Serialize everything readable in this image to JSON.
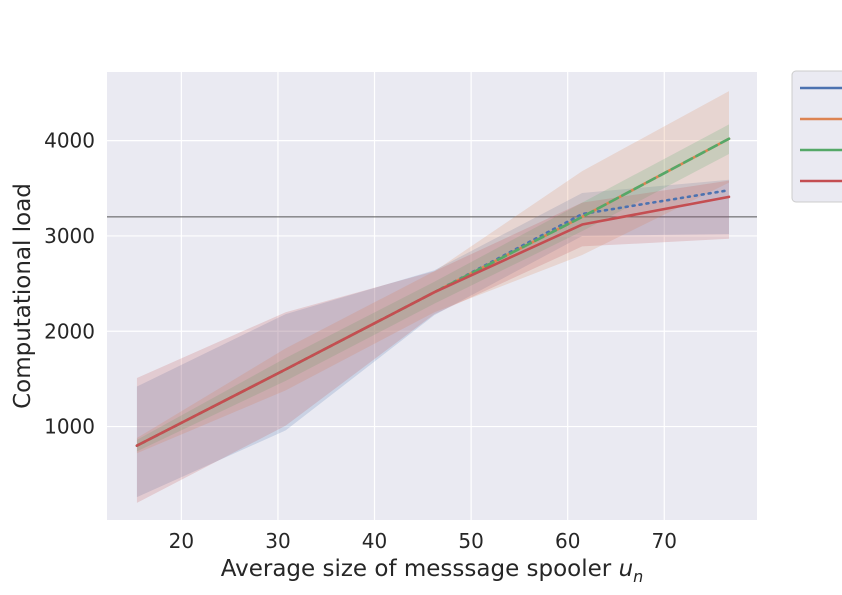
{
  "chart_data": {
    "type": "line",
    "title": "",
    "xlabel": "Average size of messsage spooler ",
    "xlabel_var": "u",
    "xlabel_sub": "n",
    "ylabel": "Computational load",
    "xlim": [
      12.3,
      79.6
    ],
    "ylim": [
      20,
      4720
    ],
    "xticks": [
      20,
      30,
      40,
      50,
      60,
      70
    ],
    "yticks": [
      1000,
      2000,
      3000,
      4000
    ],
    "grid": true,
    "legend_position": "right, outside plot (clipped)",
    "reference_line": {
      "y": 3200,
      "color": "#555555"
    },
    "x": [
      15.4,
      30.8,
      46.2,
      61.5,
      76.7
    ],
    "series": [
      {
        "color": "#4c72b0",
        "style": "dotted",
        "values": [
          800,
          1600,
          2410,
          3230,
          3480
        ],
        "lower": [
          260,
          960,
          2170,
          3000,
          3020
        ],
        "upper": [
          1420,
          2180,
          2640,
          3450,
          3590
        ]
      },
      {
        "color": "#dd8452",
        "style": "solid",
        "values": [
          800,
          1600,
          2410,
          3200,
          4020
        ],
        "lower": [
          720,
          1380,
          2200,
          2800,
          3560
        ],
        "upper": [
          880,
          1820,
          2630,
          3680,
          4520
        ]
      },
      {
        "color": "#55a868",
        "style": "dashed",
        "values": [
          800,
          1600,
          2410,
          3200,
          4020
        ],
        "lower": [
          740,
          1480,
          2290,
          3050,
          3860
        ],
        "upper": [
          860,
          1720,
          2520,
          3350,
          4170
        ]
      },
      {
        "color": "#c44e52",
        "style": "solid",
        "values": [
          800,
          1600,
          2410,
          3120,
          3410
        ],
        "lower": [
          200,
          1010,
          2180,
          2890,
          2970
        ],
        "upper": [
          1510,
          2200,
          2630,
          3350,
          3580
        ]
      }
    ]
  },
  "colors": {
    "plot_background": "#eaeaf2",
    "grid": "#ffffff",
    "text": "#262626"
  }
}
